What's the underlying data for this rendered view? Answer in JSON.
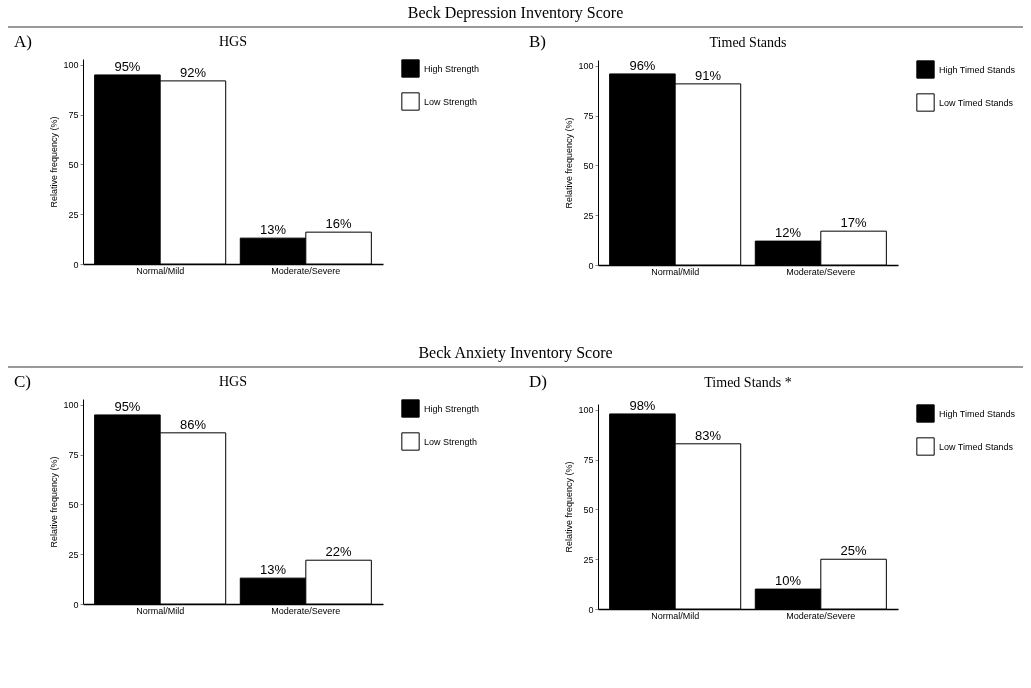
{
  "chart_data": [
    {
      "type": "bar",
      "title": "HGS",
      "annotations": [
        "Beck Depression Inventory Score",
        "A)"
      ],
      "ylabel": "Relative frequency (%)",
      "categories": [
        "Normal/Mild",
        "Moderate/Severe"
      ],
      "ylim": [
        0,
        103
      ],
      "yticks": [
        0,
        25,
        50,
        75,
        100
      ],
      "grid": false,
      "legend": "top right",
      "series": [
        {
          "name": "High Strength",
          "color": "#000000",
          "values": [
            95,
            13
          ],
          "value_labels": [
            "95%",
            "13%"
          ]
        },
        {
          "name": "Low Strength",
          "color": "#ffffff",
          "values": [
            92,
            16
          ],
          "value_labels": [
            "92%",
            "16%"
          ]
        }
      ]
    },
    {
      "type": "bar",
      "title": "Timed Stands",
      "annotations": [
        "B)"
      ],
      "ylabel": "Relative frequency (%)",
      "categories": [
        "Normal/Mild",
        "Moderate/Severe"
      ],
      "ylim": [
        0,
        103
      ],
      "yticks": [
        0,
        25,
        50,
        75,
        100
      ],
      "grid": false,
      "legend": "top right",
      "series": [
        {
          "name": "High Timed Stands",
          "color": "#000000",
          "values": [
            96,
            12
          ],
          "value_labels": [
            "96%",
            "12%"
          ]
        },
        {
          "name": "Low Timed Stands",
          "color": "#ffffff",
          "values": [
            91,
            17
          ],
          "value_labels": [
            "91%",
            "17%"
          ]
        }
      ]
    },
    {
      "type": "bar",
      "title": "HGS",
      "annotations": [
        "Beck Anxiety Inventory Score",
        "C)"
      ],
      "ylabel": "Relative frequency (%)",
      "categories": [
        "Normal/Mild",
        "Moderate/Severe"
      ],
      "ylim": [
        0,
        103
      ],
      "yticks": [
        0,
        25,
        50,
        75,
        100
      ],
      "grid": false,
      "legend": "top right",
      "series": [
        {
          "name": "High Strength",
          "color": "#000000",
          "values": [
            95,
            13
          ],
          "value_labels": [
            "95%",
            "13%"
          ]
        },
        {
          "name": "Low Strength",
          "color": "#ffffff",
          "values": [
            86,
            22
          ],
          "value_labels": [
            "86%",
            "22%"
          ]
        }
      ]
    },
    {
      "type": "bar",
      "title": "Timed Stands *",
      "annotations": [
        "D)"
      ],
      "ylabel": "Relative frequency (%)",
      "categories": [
        "Normal/Mild",
        "Moderate/Severe"
      ],
      "ylim": [
        0,
        103
      ],
      "yticks": [
        0,
        25,
        50,
        75,
        100
      ],
      "grid": false,
      "legend": "top right",
      "series": [
        {
          "name": "High Timed Stands",
          "color": "#000000",
          "values": [
            98,
            10
          ],
          "value_labels": [
            "98%",
            "10%"
          ]
        },
        {
          "name": "Low Timed Stands",
          "color": "#ffffff",
          "values": [
            83,
            25
          ],
          "value_labels": [
            "83%",
            "25%"
          ]
        }
      ]
    }
  ]
}
